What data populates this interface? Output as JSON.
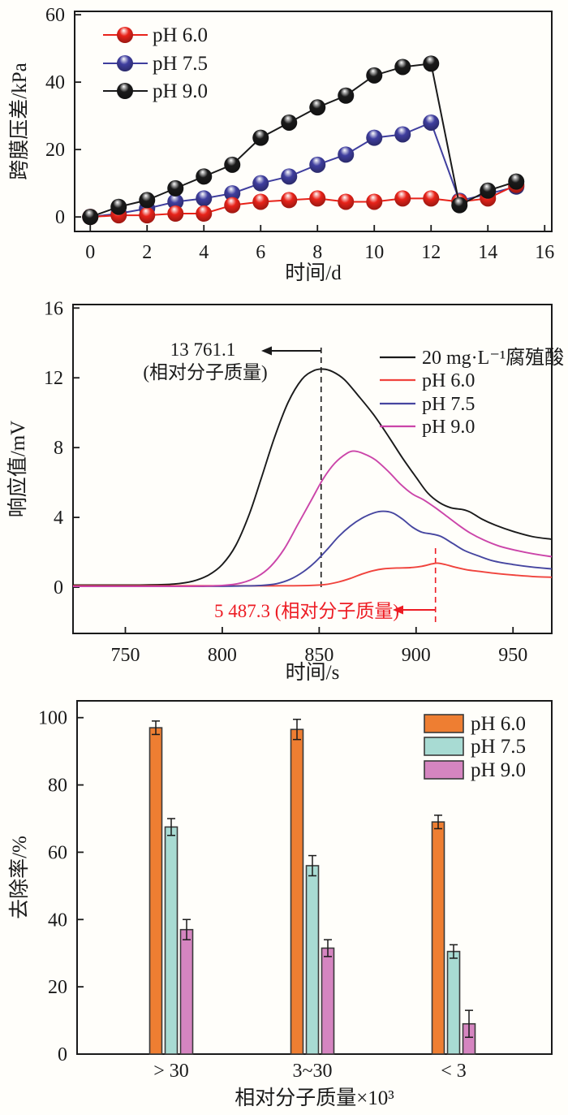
{
  "page": {
    "background": "#fffefa"
  },
  "chart_data": [
    {
      "id": "tmp-pressure",
      "type": "line",
      "title": "",
      "xlabel": "时间/d",
      "ylabel": "跨膜压差/kPa",
      "xlim": [
        -0.55,
        16.25
      ],
      "ylim": [
        -4.3,
        61
      ],
      "xticks": [
        0,
        2,
        4,
        6,
        8,
        10,
        12,
        14,
        16
      ],
      "yticks": [
        0,
        20,
        40,
        60
      ],
      "grid": false,
      "legend_position": "upper-left",
      "marker": "sphere",
      "x": [
        0,
        1,
        2,
        3,
        4,
        5,
        6,
        7,
        8,
        9,
        10,
        11,
        12,
        13,
        14,
        15
      ],
      "series": [
        {
          "name": "pH 6.0",
          "color": "#e8231a",
          "values": [
            0,
            0.5,
            0.5,
            1,
            1,
            3.5,
            4.5,
            5,
            5.5,
            4.5,
            4.5,
            5.5,
            5.5,
            4.5,
            5.5,
            9.5
          ]
        },
        {
          "name": "pH 7.5",
          "color": "#3f3e9e",
          "values": [
            0,
            1,
            2.5,
            4.5,
            5.5,
            7,
            10,
            12,
            15.5,
            18.5,
            23.5,
            24.5,
            28,
            4.8,
            6.8,
            9
          ]
        },
        {
          "name": "pH 9.0",
          "color": "#1a1a1a",
          "values": [
            0,
            3,
            5,
            8.5,
            12,
            15.5,
            23.5,
            28,
            32.5,
            36,
            42,
            44.5,
            45.5,
            3.5,
            7.8,
            10.5
          ]
        }
      ]
    },
    {
      "id": "gpc-response",
      "type": "line",
      "title": "",
      "xlabel": "时间/s",
      "ylabel": "响应值/mV",
      "xlim": [
        723,
        970
      ],
      "ylim": [
        -2.65,
        16.2
      ],
      "xticks": [
        750,
        800,
        850,
        900,
        950
      ],
      "yticks": [
        0,
        4,
        8,
        12,
        16
      ],
      "grid": false,
      "legend_position": "upper-right",
      "series": [
        {
          "name": "20 mg·L⁻¹腐殖酸",
          "color": "#1a1a1a",
          "points": [
            [
              723,
              0.12
            ],
            [
              740,
              0.12
            ],
            [
              760,
              0.13
            ],
            [
              775,
              0.18
            ],
            [
              785,
              0.35
            ],
            [
              793,
              0.7
            ],
            [
              800,
              1.3
            ],
            [
              807,
              2.4
            ],
            [
              814,
              4.2
            ],
            [
              820,
              6.2
            ],
            [
              827,
              8.6
            ],
            [
              834,
              10.6
            ],
            [
              841,
              11.9
            ],
            [
              847,
              12.4
            ],
            [
              852,
              12.5
            ],
            [
              857,
              12.35
            ],
            [
              863,
              11.9
            ],
            [
              870,
              11.0
            ],
            [
              878,
              9.9
            ],
            [
              886,
              8.6
            ],
            [
              893,
              7.4
            ],
            [
              900,
              6.3
            ],
            [
              906,
              5.4
            ],
            [
              912,
              4.85
            ],
            [
              918,
              4.55
            ],
            [
              924,
              4.45
            ],
            [
              928,
              4.3
            ],
            [
              934,
              3.9
            ],
            [
              941,
              3.55
            ],
            [
              950,
              3.2
            ],
            [
              960,
              2.9
            ],
            [
              970,
              2.75
            ]
          ]
        },
        {
          "name": "pH 6.0",
          "color": "#f0433c",
          "points": [
            [
              723,
              0.08
            ],
            [
              800,
              0.08
            ],
            [
              830,
              0.08
            ],
            [
              845,
              0.1
            ],
            [
              853,
              0.15
            ],
            [
              860,
              0.3
            ],
            [
              866,
              0.5
            ],
            [
              872,
              0.75
            ],
            [
              878,
              0.95
            ],
            [
              883,
              1.05
            ],
            [
              890,
              1.1
            ],
            [
              897,
              1.12
            ],
            [
              903,
              1.2
            ],
            [
              908,
              1.33
            ],
            [
              911,
              1.38
            ],
            [
              915,
              1.3
            ],
            [
              920,
              1.15
            ],
            [
              926,
              1.0
            ],
            [
              933,
              0.9
            ],
            [
              942,
              0.78
            ],
            [
              952,
              0.68
            ],
            [
              962,
              0.6
            ],
            [
              970,
              0.57
            ]
          ]
        },
        {
          "name": "pH 7.5",
          "color": "#4646a0",
          "points": [
            [
              723,
              0.05
            ],
            [
              790,
              0.05
            ],
            [
              810,
              0.07
            ],
            [
              820,
              0.1
            ],
            [
              828,
              0.2
            ],
            [
              835,
              0.45
            ],
            [
              842,
              0.9
            ],
            [
              848,
              1.45
            ],
            [
              854,
              2.15
            ],
            [
              860,
              2.9
            ],
            [
              866,
              3.5
            ],
            [
              872,
              3.95
            ],
            [
              878,
              4.25
            ],
            [
              883,
              4.35
            ],
            [
              888,
              4.25
            ],
            [
              893,
              3.9
            ],
            [
              898,
              3.45
            ],
            [
              903,
              3.15
            ],
            [
              908,
              3.05
            ],
            [
              913,
              2.9
            ],
            [
              919,
              2.5
            ],
            [
              925,
              2.1
            ],
            [
              932,
              1.8
            ],
            [
              940,
              1.5
            ],
            [
              950,
              1.3
            ],
            [
              960,
              1.15
            ],
            [
              970,
              1.05
            ]
          ]
        },
        {
          "name": "pH 9.0",
          "color": "#cb45a9",
          "points": [
            [
              723,
              0.05
            ],
            [
              780,
              0.05
            ],
            [
              800,
              0.1
            ],
            [
              810,
              0.25
            ],
            [
              818,
              0.6
            ],
            [
              825,
              1.2
            ],
            [
              832,
              2.2
            ],
            [
              839,
              3.6
            ],
            [
              846,
              5.0
            ],
            [
              852,
              6.2
            ],
            [
              858,
              7.1
            ],
            [
              864,
              7.65
            ],
            [
              868,
              7.8
            ],
            [
              873,
              7.65
            ],
            [
              879,
              7.3
            ],
            [
              886,
              6.6
            ],
            [
              892,
              5.9
            ],
            [
              898,
              5.35
            ],
            [
              904,
              5.0
            ],
            [
              910,
              4.55
            ],
            [
              916,
              4.05
            ],
            [
              922,
              3.55
            ],
            [
              928,
              3.1
            ],
            [
              935,
              2.7
            ],
            [
              943,
              2.35
            ],
            [
              952,
              2.1
            ],
            [
              961,
              1.9
            ],
            [
              970,
              1.75
            ]
          ]
        }
      ],
      "annotations": [
        {
          "lines": [
            "13 761.1",
            "(相对分子质量)"
          ],
          "color": "#1a1a1a",
          "dashed_line_x": 851,
          "arrow_direction": "left"
        },
        {
          "lines": [
            "5 487.3 (相对分子质量)"
          ],
          "color": "#ed1c24",
          "dashed_line_x": 910,
          "arrow_direction": "left"
        }
      ]
    },
    {
      "id": "removal-rate",
      "type": "bar",
      "title": "",
      "xlabel": "相对分子质量×10³",
      "ylabel": "去除率/%",
      "ylim": [
        0,
        105
      ],
      "yticks": [
        0,
        20,
        40,
        60,
        80,
        100
      ],
      "grid": false,
      "legend_position": "upper-right",
      "categories": [
        "> 30",
        "3~30",
        "< 3"
      ],
      "series": [
        {
          "name": "pH 6.0",
          "color": "#ee7e32",
          "values": [
            97,
            96.5,
            69
          ],
          "errors": [
            2,
            3,
            2
          ]
        },
        {
          "name": "pH 7.5",
          "color": "#a8dbd3",
          "values": [
            67.5,
            56,
            30.5
          ],
          "errors": [
            2.5,
            3,
            2
          ]
        },
        {
          "name": "pH 9.0",
          "color": "#d585c0",
          "values": [
            37,
            31.5,
            9
          ],
          "errors": [
            3,
            2.5,
            4
          ]
        }
      ]
    }
  ]
}
